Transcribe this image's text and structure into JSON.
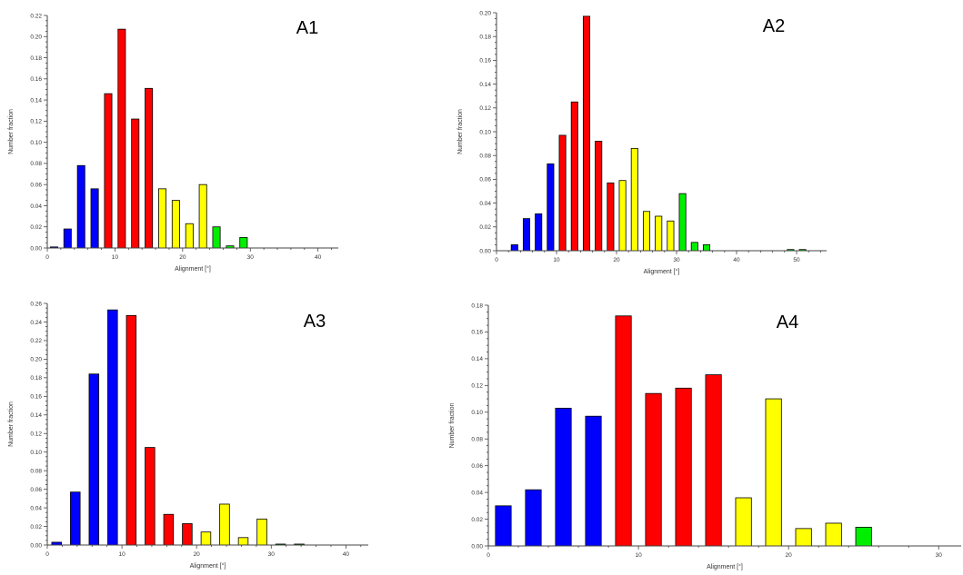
{
  "colors": {
    "blue": "#0000ff",
    "red": "#ff0000",
    "yellow": "#ffff00",
    "green": "#00ee00"
  },
  "chart_data": [
    {
      "type": "bar",
      "panel_label": "A1",
      "xlabel": "Alignment [°]",
      "ylabel": "Number fraction",
      "xlim": [
        0,
        43
      ],
      "ylim": [
        0,
        0.22
      ],
      "xticks": [
        "0",
        "10",
        "20",
        "30",
        "40"
      ],
      "yticks": [
        "0.00",
        "0.02",
        "0.04",
        "0.06",
        "0.08",
        "0.10",
        "0.12",
        "0.14",
        "0.16",
        "0.18",
        "0.20",
        "0.22"
      ],
      "bar_width": 1.1,
      "bars": [
        {
          "x": 1,
          "value": 0.001,
          "color": "blue"
        },
        {
          "x": 3,
          "value": 0.018,
          "color": "blue"
        },
        {
          "x": 5,
          "value": 0.078,
          "color": "blue"
        },
        {
          "x": 7,
          "value": 0.056,
          "color": "blue"
        },
        {
          "x": 9,
          "value": 0.146,
          "color": "red"
        },
        {
          "x": 11,
          "value": 0.207,
          "color": "red"
        },
        {
          "x": 13,
          "value": 0.122,
          "color": "red"
        },
        {
          "x": 15,
          "value": 0.151,
          "color": "red"
        },
        {
          "x": 17,
          "value": 0.056,
          "color": "yellow"
        },
        {
          "x": 19,
          "value": 0.045,
          "color": "yellow"
        },
        {
          "x": 21,
          "value": 0.023,
          "color": "yellow"
        },
        {
          "x": 23,
          "value": 0.06,
          "color": "yellow"
        },
        {
          "x": 25,
          "value": 0.02,
          "color": "green"
        },
        {
          "x": 27,
          "value": 0.002,
          "color": "green"
        },
        {
          "x": 29,
          "value": 0.01,
          "color": "green"
        }
      ]
    },
    {
      "type": "bar",
      "panel_label": "A2",
      "xlabel": "Alignment [°]",
      "ylabel": "Number fraction",
      "xlim": [
        0,
        55
      ],
      "ylim": [
        0,
        0.2
      ],
      "xticks": [
        "0",
        "10",
        "20",
        "30",
        "40",
        "50"
      ],
      "yticks": [
        "0.00",
        "0.02",
        "0.04",
        "0.06",
        "0.08",
        "0.10",
        "0.12",
        "0.14",
        "0.16",
        "0.18",
        "0.20"
      ],
      "bar_width": 1.1,
      "bars": [
        {
          "x": 3,
          "value": 0.005,
          "color": "blue"
        },
        {
          "x": 5,
          "value": 0.027,
          "color": "blue"
        },
        {
          "x": 7,
          "value": 0.031,
          "color": "blue"
        },
        {
          "x": 9,
          "value": 0.073,
          "color": "blue"
        },
        {
          "x": 11,
          "value": 0.097,
          "color": "red"
        },
        {
          "x": 13,
          "value": 0.125,
          "color": "red"
        },
        {
          "x": 15,
          "value": 0.197,
          "color": "red"
        },
        {
          "x": 17,
          "value": 0.092,
          "color": "red"
        },
        {
          "x": 19,
          "value": 0.057,
          "color": "red"
        },
        {
          "x": 21,
          "value": 0.059,
          "color": "yellow"
        },
        {
          "x": 23,
          "value": 0.086,
          "color": "yellow"
        },
        {
          "x": 25,
          "value": 0.033,
          "color": "yellow"
        },
        {
          "x": 27,
          "value": 0.029,
          "color": "yellow"
        },
        {
          "x": 29,
          "value": 0.025,
          "color": "yellow"
        },
        {
          "x": 31,
          "value": 0.048,
          "color": "green"
        },
        {
          "x": 33,
          "value": 0.007,
          "color": "green"
        },
        {
          "x": 35,
          "value": 0.005,
          "color": "green"
        },
        {
          "x": 49,
          "value": 0.001,
          "color": "green"
        },
        {
          "x": 51,
          "value": 0.001,
          "color": "green"
        }
      ]
    },
    {
      "type": "bar",
      "panel_label": "A3",
      "xlabel": "Alignment [°]",
      "ylabel": "Number fraction",
      "xlim": [
        0,
        43
      ],
      "ylim": [
        0,
        0.26
      ],
      "xticks": [
        "0",
        "10",
        "20",
        "30",
        "40"
      ],
      "yticks": [
        "0.00",
        "0.02",
        "0.04",
        "0.06",
        "0.08",
        "0.10",
        "0.12",
        "0.14",
        "0.16",
        "0.18",
        "0.20",
        "0.22",
        "0.24",
        "0.26"
      ],
      "bar_width": 1.3,
      "bars": [
        {
          "x": 1.25,
          "value": 0.003,
          "color": "blue"
        },
        {
          "x": 3.75,
          "value": 0.057,
          "color": "blue"
        },
        {
          "x": 6.25,
          "value": 0.184,
          "color": "blue"
        },
        {
          "x": 8.75,
          "value": 0.253,
          "color": "blue"
        },
        {
          "x": 11.25,
          "value": 0.247,
          "color": "red"
        },
        {
          "x": 13.75,
          "value": 0.105,
          "color": "red"
        },
        {
          "x": 16.25,
          "value": 0.033,
          "color": "red"
        },
        {
          "x": 18.75,
          "value": 0.023,
          "color": "red"
        },
        {
          "x": 21.25,
          "value": 0.014,
          "color": "yellow"
        },
        {
          "x": 23.75,
          "value": 0.044,
          "color": "yellow"
        },
        {
          "x": 26.25,
          "value": 0.008,
          "color": "yellow"
        },
        {
          "x": 28.75,
          "value": 0.028,
          "color": "yellow"
        },
        {
          "x": 31.25,
          "value": 0.001,
          "color": "green"
        },
        {
          "x": 33.75,
          "value": 0.001,
          "color": "green"
        }
      ]
    },
    {
      "type": "bar",
      "panel_label": "A4",
      "xlabel": "Alignment [°]",
      "ylabel": "Number fraction",
      "xlim": [
        0,
        31.5
      ],
      "ylim": [
        0,
        0.18
      ],
      "xticks": [
        "0",
        "10",
        "20",
        "30"
      ],
      "yticks": [
        "0.00",
        "0.02",
        "0.04",
        "0.06",
        "0.08",
        "0.10",
        "0.12",
        "0.14",
        "0.16",
        "0.18"
      ],
      "bar_width": 1.05,
      "bars": [
        {
          "x": 1,
          "value": 0.03,
          "color": "blue"
        },
        {
          "x": 3,
          "value": 0.042,
          "color": "blue"
        },
        {
          "x": 5,
          "value": 0.103,
          "color": "blue"
        },
        {
          "x": 7,
          "value": 0.097,
          "color": "blue"
        },
        {
          "x": 9,
          "value": 0.172,
          "color": "red"
        },
        {
          "x": 11,
          "value": 0.114,
          "color": "red"
        },
        {
          "x": 13,
          "value": 0.118,
          "color": "red"
        },
        {
          "x": 15,
          "value": 0.128,
          "color": "red"
        },
        {
          "x": 17,
          "value": 0.036,
          "color": "yellow"
        },
        {
          "x": 19,
          "value": 0.11,
          "color": "yellow"
        },
        {
          "x": 21,
          "value": 0.013,
          "color": "yellow"
        },
        {
          "x": 23,
          "value": 0.017,
          "color": "yellow"
        },
        {
          "x": 25,
          "value": 0.014,
          "color": "green"
        }
      ]
    }
  ]
}
